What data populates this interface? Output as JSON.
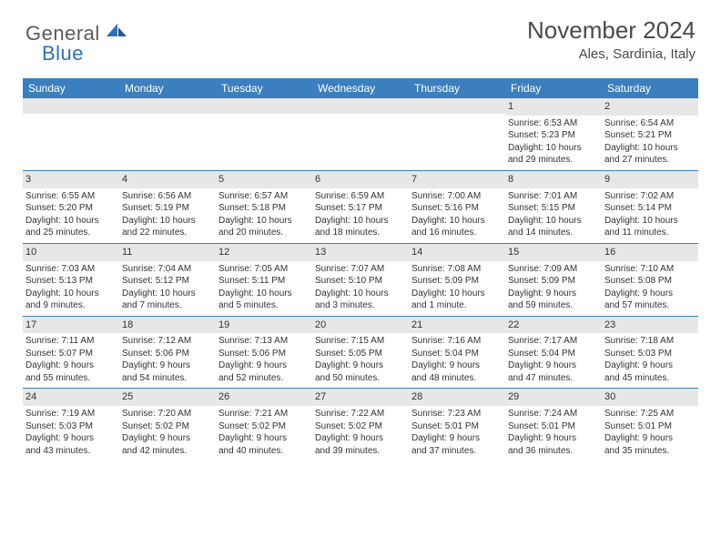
{
  "logo": {
    "general": "General",
    "blue": "Blue"
  },
  "title": "November 2024",
  "location": "Ales, Sardinia, Italy",
  "colors": {
    "header_bg": "#3b7fbe",
    "header_text": "#ffffff",
    "daynum_bg": "#e7e7e7",
    "rule": "#3b7fbe",
    "body_text": "#333333",
    "logo_gray": "#5a5a5a",
    "logo_blue": "#2f6fb5"
  },
  "day_names": [
    "Sunday",
    "Monday",
    "Tuesday",
    "Wednesday",
    "Thursday",
    "Friday",
    "Saturday"
  ],
  "weeks": [
    [
      {
        "n": "",
        "sunrise": "",
        "sunset": "",
        "daylight1": "",
        "daylight2": ""
      },
      {
        "n": "",
        "sunrise": "",
        "sunset": "",
        "daylight1": "",
        "daylight2": ""
      },
      {
        "n": "",
        "sunrise": "",
        "sunset": "",
        "daylight1": "",
        "daylight2": ""
      },
      {
        "n": "",
        "sunrise": "",
        "sunset": "",
        "daylight1": "",
        "daylight2": ""
      },
      {
        "n": "",
        "sunrise": "",
        "sunset": "",
        "daylight1": "",
        "daylight2": ""
      },
      {
        "n": "1",
        "sunrise": "Sunrise: 6:53 AM",
        "sunset": "Sunset: 5:23 PM",
        "daylight1": "Daylight: 10 hours",
        "daylight2": "and 29 minutes."
      },
      {
        "n": "2",
        "sunrise": "Sunrise: 6:54 AM",
        "sunset": "Sunset: 5:21 PM",
        "daylight1": "Daylight: 10 hours",
        "daylight2": "and 27 minutes."
      }
    ],
    [
      {
        "n": "3",
        "sunrise": "Sunrise: 6:55 AM",
        "sunset": "Sunset: 5:20 PM",
        "daylight1": "Daylight: 10 hours",
        "daylight2": "and 25 minutes."
      },
      {
        "n": "4",
        "sunrise": "Sunrise: 6:56 AM",
        "sunset": "Sunset: 5:19 PM",
        "daylight1": "Daylight: 10 hours",
        "daylight2": "and 22 minutes."
      },
      {
        "n": "5",
        "sunrise": "Sunrise: 6:57 AM",
        "sunset": "Sunset: 5:18 PM",
        "daylight1": "Daylight: 10 hours",
        "daylight2": "and 20 minutes."
      },
      {
        "n": "6",
        "sunrise": "Sunrise: 6:59 AM",
        "sunset": "Sunset: 5:17 PM",
        "daylight1": "Daylight: 10 hours",
        "daylight2": "and 18 minutes."
      },
      {
        "n": "7",
        "sunrise": "Sunrise: 7:00 AM",
        "sunset": "Sunset: 5:16 PM",
        "daylight1": "Daylight: 10 hours",
        "daylight2": "and 16 minutes."
      },
      {
        "n": "8",
        "sunrise": "Sunrise: 7:01 AM",
        "sunset": "Sunset: 5:15 PM",
        "daylight1": "Daylight: 10 hours",
        "daylight2": "and 14 minutes."
      },
      {
        "n": "9",
        "sunrise": "Sunrise: 7:02 AM",
        "sunset": "Sunset: 5:14 PM",
        "daylight1": "Daylight: 10 hours",
        "daylight2": "and 11 minutes."
      }
    ],
    [
      {
        "n": "10",
        "sunrise": "Sunrise: 7:03 AM",
        "sunset": "Sunset: 5:13 PM",
        "daylight1": "Daylight: 10 hours",
        "daylight2": "and 9 minutes."
      },
      {
        "n": "11",
        "sunrise": "Sunrise: 7:04 AM",
        "sunset": "Sunset: 5:12 PM",
        "daylight1": "Daylight: 10 hours",
        "daylight2": "and 7 minutes."
      },
      {
        "n": "12",
        "sunrise": "Sunrise: 7:05 AM",
        "sunset": "Sunset: 5:11 PM",
        "daylight1": "Daylight: 10 hours",
        "daylight2": "and 5 minutes."
      },
      {
        "n": "13",
        "sunrise": "Sunrise: 7:07 AM",
        "sunset": "Sunset: 5:10 PM",
        "daylight1": "Daylight: 10 hours",
        "daylight2": "and 3 minutes."
      },
      {
        "n": "14",
        "sunrise": "Sunrise: 7:08 AM",
        "sunset": "Sunset: 5:09 PM",
        "daylight1": "Daylight: 10 hours",
        "daylight2": "and 1 minute."
      },
      {
        "n": "15",
        "sunrise": "Sunrise: 7:09 AM",
        "sunset": "Sunset: 5:09 PM",
        "daylight1": "Daylight: 9 hours",
        "daylight2": "and 59 minutes."
      },
      {
        "n": "16",
        "sunrise": "Sunrise: 7:10 AM",
        "sunset": "Sunset: 5:08 PM",
        "daylight1": "Daylight: 9 hours",
        "daylight2": "and 57 minutes."
      }
    ],
    [
      {
        "n": "17",
        "sunrise": "Sunrise: 7:11 AM",
        "sunset": "Sunset: 5:07 PM",
        "daylight1": "Daylight: 9 hours",
        "daylight2": "and 55 minutes."
      },
      {
        "n": "18",
        "sunrise": "Sunrise: 7:12 AM",
        "sunset": "Sunset: 5:06 PM",
        "daylight1": "Daylight: 9 hours",
        "daylight2": "and 54 minutes."
      },
      {
        "n": "19",
        "sunrise": "Sunrise: 7:13 AM",
        "sunset": "Sunset: 5:06 PM",
        "daylight1": "Daylight: 9 hours",
        "daylight2": "and 52 minutes."
      },
      {
        "n": "20",
        "sunrise": "Sunrise: 7:15 AM",
        "sunset": "Sunset: 5:05 PM",
        "daylight1": "Daylight: 9 hours",
        "daylight2": "and 50 minutes."
      },
      {
        "n": "21",
        "sunrise": "Sunrise: 7:16 AM",
        "sunset": "Sunset: 5:04 PM",
        "daylight1": "Daylight: 9 hours",
        "daylight2": "and 48 minutes."
      },
      {
        "n": "22",
        "sunrise": "Sunrise: 7:17 AM",
        "sunset": "Sunset: 5:04 PM",
        "daylight1": "Daylight: 9 hours",
        "daylight2": "and 47 minutes."
      },
      {
        "n": "23",
        "sunrise": "Sunrise: 7:18 AM",
        "sunset": "Sunset: 5:03 PM",
        "daylight1": "Daylight: 9 hours",
        "daylight2": "and 45 minutes."
      }
    ],
    [
      {
        "n": "24",
        "sunrise": "Sunrise: 7:19 AM",
        "sunset": "Sunset: 5:03 PM",
        "daylight1": "Daylight: 9 hours",
        "daylight2": "and 43 minutes."
      },
      {
        "n": "25",
        "sunrise": "Sunrise: 7:20 AM",
        "sunset": "Sunset: 5:02 PM",
        "daylight1": "Daylight: 9 hours",
        "daylight2": "and 42 minutes."
      },
      {
        "n": "26",
        "sunrise": "Sunrise: 7:21 AM",
        "sunset": "Sunset: 5:02 PM",
        "daylight1": "Daylight: 9 hours",
        "daylight2": "and 40 minutes."
      },
      {
        "n": "27",
        "sunrise": "Sunrise: 7:22 AM",
        "sunset": "Sunset: 5:02 PM",
        "daylight1": "Daylight: 9 hours",
        "daylight2": "and 39 minutes."
      },
      {
        "n": "28",
        "sunrise": "Sunrise: 7:23 AM",
        "sunset": "Sunset: 5:01 PM",
        "daylight1": "Daylight: 9 hours",
        "daylight2": "and 37 minutes."
      },
      {
        "n": "29",
        "sunrise": "Sunrise: 7:24 AM",
        "sunset": "Sunset: 5:01 PM",
        "daylight1": "Daylight: 9 hours",
        "daylight2": "and 36 minutes."
      },
      {
        "n": "30",
        "sunrise": "Sunrise: 7:25 AM",
        "sunset": "Sunset: 5:01 PM",
        "daylight1": "Daylight: 9 hours",
        "daylight2": "and 35 minutes."
      }
    ]
  ]
}
